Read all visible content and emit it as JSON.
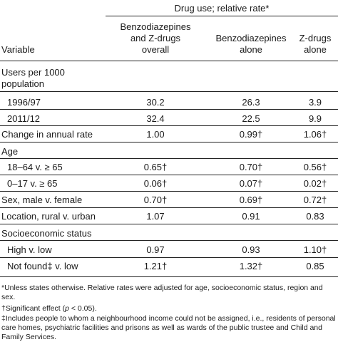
{
  "table": {
    "spanner": "Drug use; relative rate*",
    "columns": [
      "Benzodiazepines and Z-drugs overall",
      "Benzodiazepines alone",
      "Z-drugs alone"
    ],
    "col_lines": {
      "c1": [
        "Benzodiazepines",
        "and Z-drugs",
        "overall"
      ],
      "c2": [
        "Benzodiazepines",
        "alone"
      ],
      "c3": [
        "Z-drugs",
        "alone"
      ]
    },
    "variable_header": "Variable",
    "rows": [
      {
        "label": "Users per 1000",
        "label2": "population",
        "c1": "",
        "c2": "",
        "c3": ""
      },
      {
        "label": "1996/97",
        "c1": "30.2",
        "c2": "26.3",
        "c3": "3.9"
      },
      {
        "label": "2011/12",
        "c1": "32.4",
        "c2": "22.5",
        "c3": "9.9"
      },
      {
        "label": "Change in annual rate",
        "c1": "1.00",
        "c2": "0.99†",
        "c3": "1.06†"
      },
      {
        "label": "Age",
        "c1": "",
        "c2": "",
        "c3": ""
      },
      {
        "label": "18–64 v. ≥ 65",
        "c1": "0.65†",
        "c2": "0.70†",
        "c3": "0.56†"
      },
      {
        "label": "0–17 v. ≥ 65",
        "c1": "0.06†",
        "c2": "0.07†",
        "c3": "0.02†"
      },
      {
        "label": "Sex, male v. female",
        "c1": "0.70†",
        "c2": "0.69†",
        "c3": "0.72†"
      },
      {
        "label": "Location, rural v. urban",
        "c1": "1.07",
        "c2": "0.91",
        "c3": "0.83"
      },
      {
        "label": "Socioeconomic status",
        "c1": "",
        "c2": "",
        "c3": ""
      },
      {
        "label": "High v. low",
        "c1": "0.97",
        "c2": "0.93",
        "c3": "1.10†"
      },
      {
        "label": "Not found‡ v. low",
        "c1": "1.21†",
        "c2": "1.32†",
        "c3": "0.85"
      }
    ]
  },
  "footnotes": [
    "*Unless states otherwise. Relative rates were adjusted for age, socioeconomic status, region and sex.",
    "†Significant effect (p < 0.05).",
    "‡Includes people to whom a neighbourhood income could not be assigned, i.e., residents of personal care homes, psychiatric facilities and prisons as well as wards of the public trustee and Child and Family Services."
  ]
}
